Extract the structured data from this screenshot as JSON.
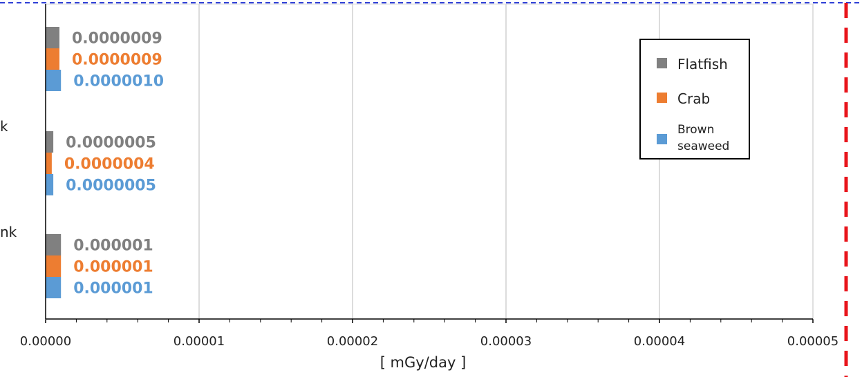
{
  "chart_data": {
    "type": "bar",
    "orientation": "horizontal",
    "categories": [
      "",
      "k",
      "nk"
    ],
    "series": [
      {
        "name": "Flatfish",
        "color": "#808080",
        "values": [
          9e-07,
          5e-07,
          1e-06
        ],
        "labels": [
          "0.0000009",
          "0.0000005",
          "0.000001"
        ]
      },
      {
        "name": "Crab",
        "color": "#ED7D31",
        "values": [
          9e-07,
          4e-07,
          1e-06
        ],
        "labels": [
          "0.0000009",
          "0.0000004",
          "0.000001"
        ]
      },
      {
        "name": "Brown seaweed",
        "color": "#5B9BD5",
        "values": [
          1e-06,
          5e-07,
          1e-06
        ],
        "labels": [
          "0.0000010",
          "0.0000005",
          "0.000001"
        ]
      }
    ],
    "xlabel": "[ mGy/day ]",
    "xlim": [
      0,
      5e-05
    ],
    "x_ticks": [
      "0.00000",
      "0.00001",
      "0.00002",
      "0.00003",
      "0.00004",
      "0.00005"
    ],
    "grid": true,
    "legend": {
      "placement": "top-right",
      "entries": [
        "Flatfish",
        "Crab",
        "Brown\nseaweed"
      ]
    },
    "annotations": {
      "top_line": {
        "style": "dashed",
        "color": "#2E3FD6"
      },
      "right_line": {
        "style": "dashed",
        "color": "#E8141B"
      }
    }
  }
}
